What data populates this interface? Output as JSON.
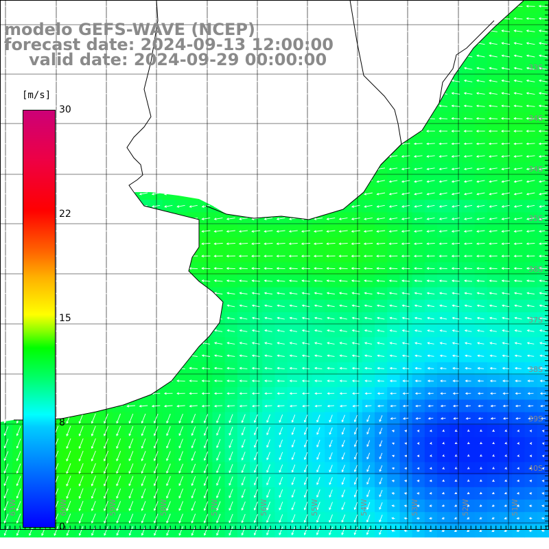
{
  "title_lines": [
    "modelo GEFS-WAVE (NCEP)",
    "forecast date: 2024-09-13 12:00:00",
    "valid date: 2024-09-29 00:00:00"
  ],
  "colorbar": {
    "unit": "[m/s]",
    "ticks": [
      "30",
      "22",
      "15",
      "8",
      "0"
    ],
    "tick_values": [
      30,
      22,
      15,
      8,
      0
    ],
    "range": [
      0,
      30
    ],
    "colors": [
      "#0000ff",
      "#00ccff",
      "#00ffff",
      "#00ff00",
      "#ffff00",
      "#ff6600",
      "#ff0000",
      "#cc0077"
    ]
  },
  "axes": {
    "lat_labels": [
      "33S",
      "34S",
      "35S",
      "36S",
      "37S",
      "38S",
      "39S",
      "40S"
    ],
    "lon_labels": [
      "61W",
      "60W",
      "59W",
      "58W",
      "57W",
      "56W",
      "55W",
      "54W",
      "53W",
      "52W",
      "51W"
    ]
  },
  "field": {
    "variable": "wind speed with direction arrows",
    "land_color": "#ffffff",
    "grid": true
  }
}
